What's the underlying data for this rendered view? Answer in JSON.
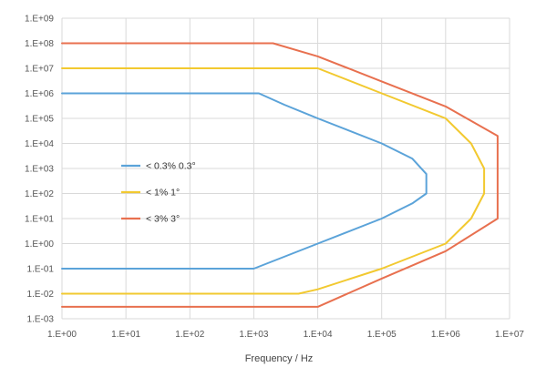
{
  "chart_data": {
    "type": "line",
    "title": "",
    "xlabel": "Frequency / Hz",
    "ylabel": "",
    "x_scale": "log",
    "y_scale": "log",
    "xlim": [
      1,
      10000000
    ],
    "ylim": [
      0.001,
      1000000000
    ],
    "grid": true,
    "legend_position": "center-left",
    "x_tick_labels": [
      "1.E+00",
      "1.E+01",
      "1.E+02",
      "1.E+03",
      "1.E+04",
      "1.E+05",
      "1.E+06",
      "1.E+07"
    ],
    "y_tick_labels": [
      "1.E+09",
      "1.E+08",
      "1.E+07",
      "1.E+06",
      "1.E+05",
      "1.E+04",
      "1.E+03",
      "1.E+02",
      "1.E+01",
      "1.E+00",
      "1.E-01",
      "1.E-02",
      "1.E-03"
    ],
    "series": [
      {
        "name": "< 0.3% 0.3°",
        "color": "#5ba3d9",
        "points": [
          [
            1,
            1000000
          ],
          [
            1200,
            1000000
          ],
          [
            3000,
            350000
          ],
          [
            10000,
            100000
          ],
          [
            100000,
            10000
          ],
          [
            300000,
            2500
          ],
          [
            500000,
            600
          ],
          [
            500000,
            100
          ],
          [
            300000,
            40
          ],
          [
            100000,
            10
          ],
          [
            10000,
            1
          ],
          [
            1000,
            0.1
          ],
          [
            1,
            0.1
          ]
        ]
      },
      {
        "name": "< 1% 1°",
        "color": "#f2c930",
        "points": [
          [
            1,
            10000000
          ],
          [
            10000,
            10000000
          ],
          [
            100000,
            1000000
          ],
          [
            1000000,
            100000
          ],
          [
            2500000,
            10000
          ],
          [
            4000000,
            1000
          ],
          [
            4000000,
            100
          ],
          [
            2500000,
            10
          ],
          [
            1000000,
            1
          ],
          [
            100000,
            0.1
          ],
          [
            10000,
            0.015
          ],
          [
            5000,
            0.01
          ],
          [
            1,
            0.01
          ]
        ]
      },
      {
        "name": "< 3% 3°",
        "color": "#e8704f",
        "points": [
          [
            1,
            100000000
          ],
          [
            2000,
            100000000
          ],
          [
            10000,
            30000000
          ],
          [
            100000,
            3000000
          ],
          [
            1000000,
            300000
          ],
          [
            6500000,
            20000
          ],
          [
            6500000,
            10
          ],
          [
            1000000,
            0.5
          ],
          [
            100000,
            0.04
          ],
          [
            10000,
            0.003
          ],
          [
            1,
            0.003
          ]
        ]
      }
    ]
  }
}
